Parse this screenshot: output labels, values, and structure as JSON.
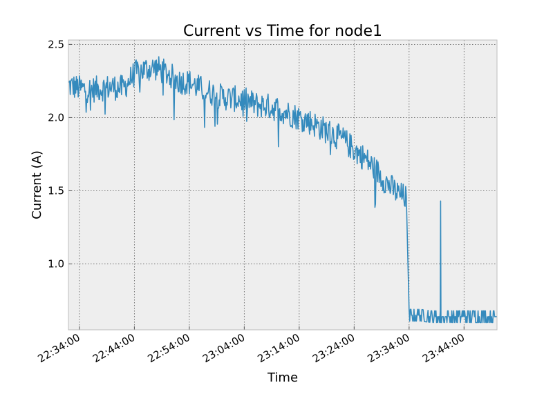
{
  "chart_data": {
    "type": "line",
    "title": "Current vs Time for node1",
    "xlabel": "Time",
    "ylabel": "Current (A)",
    "xlim": [
      "22:32:00",
      "23:50:00"
    ],
    "ylim": [
      0.55,
      2.53
    ],
    "grid": true,
    "xticks": [
      "22:34:00",
      "22:44:00",
      "22:54:00",
      "23:04:00",
      "23:14:00",
      "23:24:00",
      "23:34:00",
      "23:44:00"
    ],
    "yticks": [
      1.0,
      1.5,
      2.0,
      2.5
    ],
    "ytick_labels": [
      "1.0",
      "1.5",
      "2.0",
      "2.5"
    ],
    "colors": {
      "line": "#348abd",
      "plot_bg": "#eeeeee",
      "grid": "#555555",
      "frame": "#bcbcbc"
    },
    "series": [
      {
        "x": [
          "22:32:00",
          "22:34:00",
          "22:36:00",
          "22:38:00",
          "22:40:00",
          "22:42:00",
          "22:44:00",
          "22:46:00",
          "22:48:00",
          "22:50:00",
          "22:52:00",
          "22:54:00",
          "22:56:00",
          "22:58:00",
          "23:00:00",
          "23:02:00",
          "23:04:00",
          "23:06:00",
          "23:08:00",
          "23:10:00",
          "23:12:00",
          "23:14:00",
          "23:16:00",
          "23:18:00",
          "23:20:00",
          "23:22:00",
          "23:24:00",
          "23:26:00",
          "23:28:00",
          "23:30:00",
          "23:32:00",
          "23:33:30",
          "23:34:00",
          "23:36:00",
          "23:38:00",
          "23:40:00",
          "23:42:00",
          "23:44:00",
          "23:46:00",
          "23:48:00",
          "23:50:00"
        ],
        "y": [
          2.22,
          2.2,
          2.19,
          2.2,
          2.21,
          2.2,
          2.3,
          2.33,
          2.34,
          2.3,
          2.25,
          2.24,
          2.2,
          2.17,
          2.14,
          2.13,
          2.12,
          2.09,
          2.08,
          2.06,
          2.03,
          2.0,
          1.97,
          1.93,
          1.89,
          1.85,
          1.78,
          1.72,
          1.64,
          1.55,
          1.48,
          1.45,
          0.65,
          0.65,
          0.64,
          0.64,
          0.64,
          0.64,
          0.64,
          0.64,
          0.64
        ]
      }
    ]
  }
}
